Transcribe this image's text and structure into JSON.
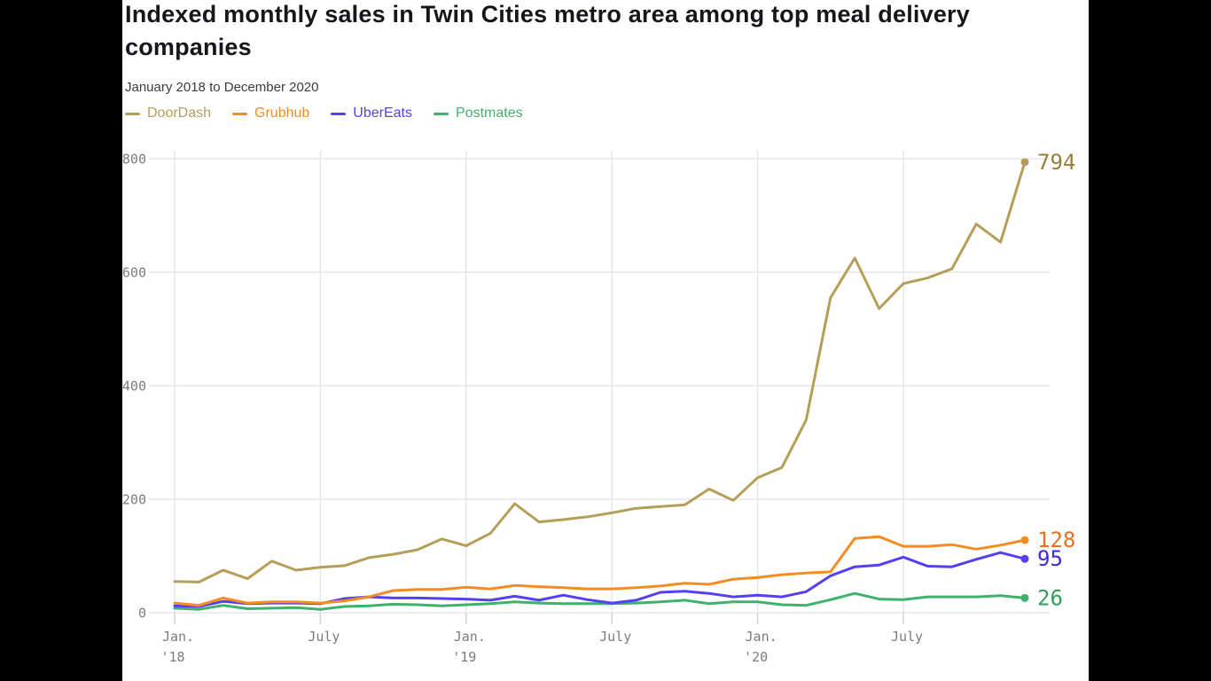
{
  "page": {
    "title": "Indexed monthly sales in Twin Cities metro area among top meal delivery companies",
    "subtitle": "January 2018 to December 2020"
  },
  "colors": {
    "page_background": "#000000",
    "card_background": "#ffffff",
    "gridline": "#e7e7ea",
    "tick": "#d2d2d8",
    "axis_text": "#7b7b82",
    "title_text": "#15171b",
    "subtitle_text": "#3c3c40"
  },
  "chart_data": {
    "type": "line",
    "title": "Indexed monthly sales in Twin Cities metro area among top meal delivery companies",
    "subtitle": "January 2018 to December 2020",
    "legend_position": "top",
    "grid": true,
    "ylim": [
      0,
      800
    ],
    "y_ticks": [
      0,
      200,
      400,
      600,
      800
    ],
    "x": [
      "Jan 2018",
      "Feb 2018",
      "Mar 2018",
      "Apr 2018",
      "May 2018",
      "Jun 2018",
      "Jul 2018",
      "Aug 2018",
      "Sep 2018",
      "Oct 2018",
      "Nov 2018",
      "Dec 2018",
      "Jan 2019",
      "Feb 2019",
      "Mar 2019",
      "Apr 2019",
      "May 2019",
      "Jun 2019",
      "Jul 2019",
      "Aug 2019",
      "Sep 2019",
      "Oct 2019",
      "Nov 2019",
      "Dec 2019",
      "Jan 2020",
      "Feb 2020",
      "Mar 2020",
      "Apr 2020",
      "May 2020",
      "Jun 2020",
      "Jul 2020",
      "Aug 2020",
      "Sep 2020",
      "Oct 2020",
      "Nov 2020",
      "Dec 2020"
    ],
    "x_tick_labels": [
      {
        "line1": "Jan.",
        "line2": "'18",
        "month_index": 0
      },
      {
        "line1": "July",
        "line2": "",
        "month_index": 6
      },
      {
        "line1": "Jan.",
        "line2": "'19",
        "month_index": 12
      },
      {
        "line1": "July",
        "line2": "",
        "month_index": 18
      },
      {
        "line1": "Jan.",
        "line2": "'20",
        "month_index": 24
      },
      {
        "line1": "July",
        "line2": "",
        "month_index": 30
      }
    ],
    "series": [
      {
        "name": "DoorDash",
        "color": "#b59e58",
        "label_color": "#94803a",
        "end_label": "794",
        "values": [
          55,
          54,
          75,
          60,
          91,
          75,
          80,
          83,
          97,
          103,
          111,
          130,
          118,
          140,
          192,
          160,
          164,
          169,
          176,
          184,
          187,
          190,
          218,
          198,
          238,
          256,
          340,
          555,
          625,
          536,
          580,
          590,
          606,
          685,
          653,
          794
        ]
      },
      {
        "name": "Grubhub",
        "color": "#f68c21",
        "label_color": "#e8701f",
        "end_label": "128",
        "values": [
          17,
          13,
          26,
          17,
          19,
          19,
          17,
          21,
          28,
          39,
          41,
          41,
          45,
          42,
          48,
          46,
          44,
          42,
          42,
          44,
          47,
          52,
          50,
          59,
          62,
          67,
          70,
          72,
          131,
          134,
          117,
          117,
          120,
          112,
          119,
          128
        ]
      },
      {
        "name": "UberEats",
        "color": "#5440f2",
        "label_color": "#3c2ae0",
        "end_label": "95",
        "values": [
          12,
          11,
          20,
          16,
          17,
          17,
          16,
          25,
          28,
          26,
          26,
          25,
          24,
          22,
          29,
          22,
          31,
          23,
          17,
          22,
          36,
          38,
          34,
          28,
          31,
          28,
          37,
          65,
          81,
          84,
          98,
          82,
          81,
          94,
          106,
          95
        ]
      },
      {
        "name": "Postmates",
        "color": "#3eb26a",
        "label_color": "#2f9e53",
        "end_label": "26",
        "values": [
          8,
          6,
          13,
          7,
          8,
          9,
          6,
          11,
          12,
          15,
          14,
          12,
          14,
          16,
          19,
          17,
          16,
          16,
          16,
          17,
          19,
          22,
          16,
          19,
          19,
          14,
          13,
          23,
          34,
          24,
          23,
          28,
          28,
          28,
          30,
          26
        ]
      }
    ]
  }
}
